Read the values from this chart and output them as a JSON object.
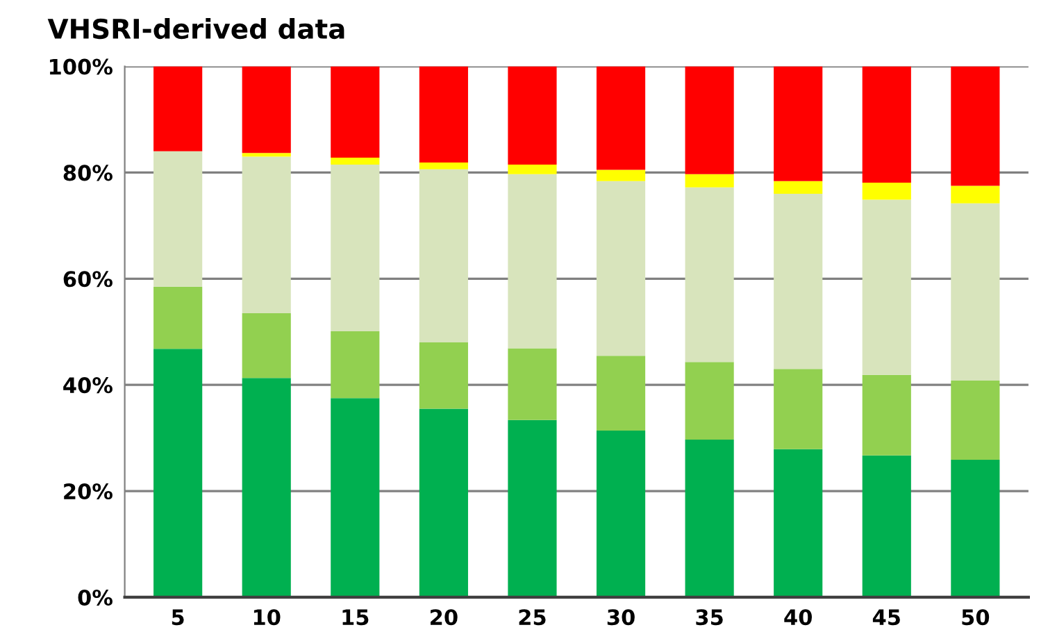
{
  "chart_data": {
    "type": "bar",
    "title": "VHSRI-derived data",
    "stacked": true,
    "categories": [
      "5",
      "10",
      "15",
      "20",
      "25",
      "30",
      "35",
      "40",
      "45",
      "50"
    ],
    "series": [
      {
        "color": "#00b050",
        "values": [
          46.8,
          41.3,
          37.5,
          35.5,
          33.4,
          31.4,
          29.7,
          27.9,
          26.7,
          25.9
        ]
      },
      {
        "color": "#92d050",
        "values": [
          11.7,
          12.2,
          12.6,
          12.5,
          13.5,
          14.1,
          14.6,
          15.1,
          15.2,
          14.9
        ]
      },
      {
        "color": "#d8e4bc",
        "values": [
          25.5,
          29.5,
          31.4,
          32.6,
          32.8,
          32.9,
          32.9,
          33.0,
          33.0,
          33.4
        ]
      },
      {
        "color": "#ffff00",
        "values": [
          0,
          0.7,
          1.3,
          1.3,
          1.8,
          2.1,
          2.5,
          2.4,
          3.2,
          3.3
        ]
      },
      {
        "color": "#ff0000",
        "values": [
          16.0,
          16.3,
          17.2,
          18.1,
          18.5,
          19.5,
          20.3,
          21.6,
          21.9,
          22.5
        ]
      }
    ],
    "ylim": [
      0,
      100
    ],
    "yticks": [
      {
        "value": 0,
        "label": "0%"
      },
      {
        "value": 20,
        "label": "20%"
      },
      {
        "value": 40,
        "label": "40%"
      },
      {
        "value": 60,
        "label": "60%"
      },
      {
        "value": 80,
        "label": "80%"
      },
      {
        "value": 100,
        "label": "100%"
      }
    ],
    "grid": "y",
    "legend": false
  }
}
